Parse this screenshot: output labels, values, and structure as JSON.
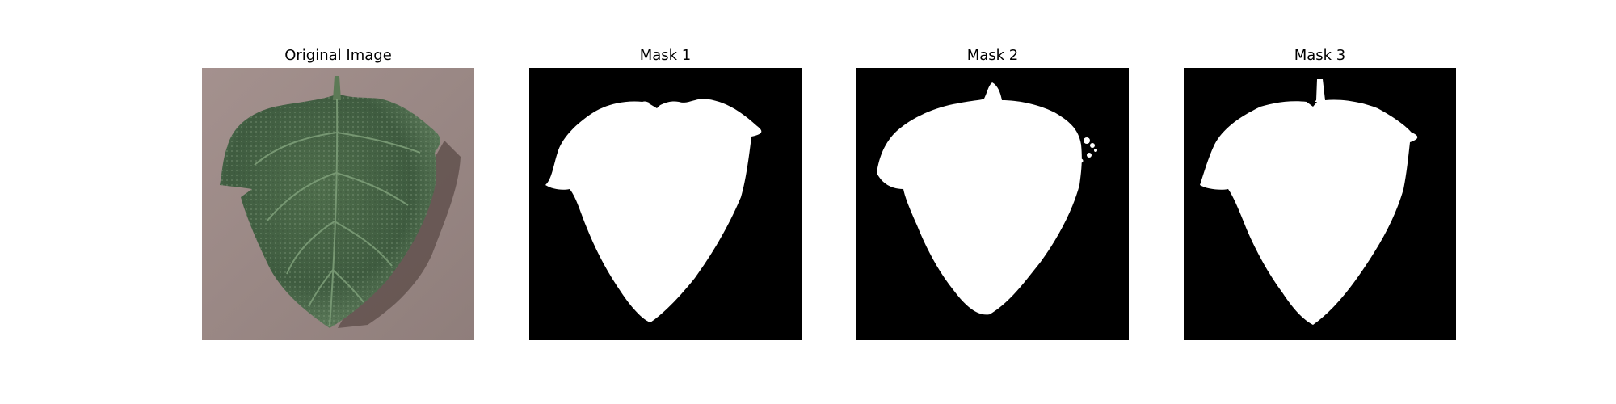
{
  "figure": {
    "panels": [
      {
        "title": "Original Image",
        "kind": "photo"
      },
      {
        "title": "Mask 1",
        "kind": "mask"
      },
      {
        "title": "Mask 2",
        "kind": "mask"
      },
      {
        "title": "Mask 3",
        "kind": "mask"
      }
    ]
  },
  "colors": {
    "background": "#ffffff",
    "mask_background": "#000000",
    "mask_foreground": "#ffffff",
    "photo_background": "#9c8b88",
    "leaf_dark": "#3f5b40",
    "leaf_light": "#6f8f6c",
    "shadow": "#5a4a48"
  }
}
